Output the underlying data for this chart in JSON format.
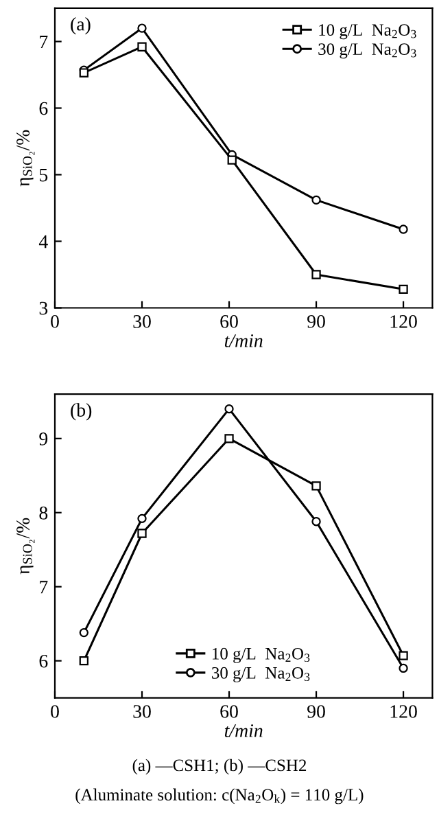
{
  "chart_data": [
    {
      "type": "line",
      "xlabel": "t/min",
      "ylabel": "η$_{SiO₂}$/%",
      "annotations": [
        "(a)"
      ],
      "x": [
        10,
        30,
        61,
        90,
        120
      ],
      "xlim": [
        0,
        130
      ],
      "xticks": [
        0,
        30,
        60,
        90,
        120
      ],
      "ylim": [
        3,
        7.5
      ],
      "yticks": [
        3,
        4,
        5,
        6,
        7
      ],
      "legend": "upper right",
      "grid": false,
      "series": [
        {
          "name": "10 g/L  Na$_{2}$O$_{3}$",
          "color": "#000000",
          "marker": "square",
          "values": [
            6.53,
            6.92,
            5.22,
            3.5,
            3.28
          ]
        },
        {
          "name": "30 g/L  Na$_{2}$O$_{3}$",
          "color": "#000000",
          "marker": "circle",
          "values": [
            6.57,
            7.2,
            5.3,
            4.62,
            4.18
          ]
        }
      ]
    },
    {
      "type": "line",
      "xlabel": "t/min",
      "ylabel": "η$_{SiO₂}$/%",
      "annotations": [
        "(b)",
        "(a) —CSH1; (b) —CSH2",
        "(Aluminate solution: c(Na$_{2}$O$_{k}$) = 110 g/L)"
      ],
      "x": [
        10,
        30,
        60,
        90,
        120
      ],
      "xlim": [
        0,
        130
      ],
      "xticks": [
        0,
        30,
        60,
        90,
        120
      ],
      "ylim": [
        5.5,
        9.6
      ],
      "yticks": [
        6,
        7,
        8,
        9
      ],
      "legend": "lower center",
      "grid": false,
      "series": [
        {
          "name": "10 g/L  Na$_{2}$O$_{3}$",
          "color": "#000000",
          "marker": "square",
          "values": [
            6.0,
            7.72,
            9.0,
            8.36,
            6.07
          ]
        },
        {
          "name": "30 g/L  Na$_{2}$O$_{3}$",
          "color": "#000000",
          "marker": "circle",
          "values": [
            6.38,
            7.92,
            9.4,
            7.88,
            5.9
          ]
        }
      ]
    }
  ]
}
